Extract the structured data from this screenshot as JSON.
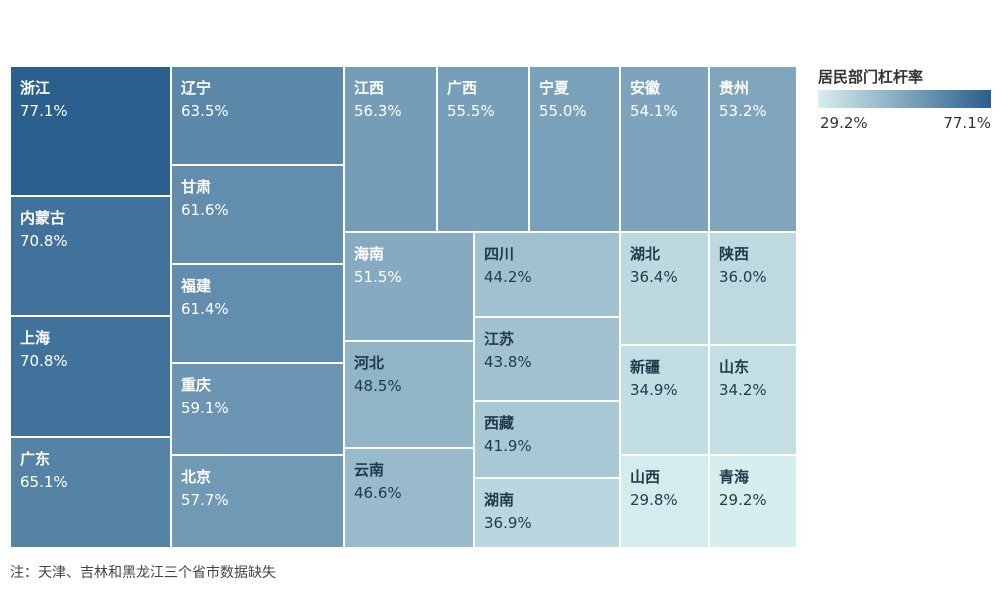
{
  "chart_data": {
    "type": "treemap",
    "title": "",
    "legend": {
      "title": "居民部门杠杆率",
      "min_label": "29.2%",
      "max_label": "77.1%",
      "min": 29.2,
      "max": 77.1,
      "color_low": "#d6eeee",
      "color_high": "#2a5f8e",
      "placement": "top-right"
    },
    "items": [
      {
        "name": "浙江",
        "label": "77.1%",
        "value": 77.1
      },
      {
        "name": "内蒙古",
        "label": "70.8%",
        "value": 70.8
      },
      {
        "name": "上海",
        "label": "70.8%",
        "value": 70.8
      },
      {
        "name": "广东",
        "label": "65.1%",
        "value": 65.1
      },
      {
        "name": "辽宁",
        "label": "63.5%",
        "value": 63.5
      },
      {
        "name": "甘肃",
        "label": "61.6%",
        "value": 61.6
      },
      {
        "name": "福建",
        "label": "61.4%",
        "value": 61.4
      },
      {
        "name": "重庆",
        "label": "59.1%",
        "value": 59.1
      },
      {
        "name": "北京",
        "label": "57.7%",
        "value": 57.7
      },
      {
        "name": "江西",
        "label": "56.3%",
        "value": 56.3
      },
      {
        "name": "广西",
        "label": "55.5%",
        "value": 55.5
      },
      {
        "name": "宁夏",
        "label": "55.0%",
        "value": 55.0
      },
      {
        "name": "安徽",
        "label": "54.1%",
        "value": 54.1
      },
      {
        "name": "贵州",
        "label": "53.2%",
        "value": 53.2
      },
      {
        "name": "海南",
        "label": "51.5%",
        "value": 51.5
      },
      {
        "name": "河北",
        "label": "48.5%",
        "value": 48.5
      },
      {
        "name": "云南",
        "label": "46.6%",
        "value": 46.6
      },
      {
        "name": "四川",
        "label": "44.2%",
        "value": 44.2
      },
      {
        "name": "江苏",
        "label": "43.8%",
        "value": 43.8
      },
      {
        "name": "西藏",
        "label": "41.9%",
        "value": 41.9
      },
      {
        "name": "湖南",
        "label": "36.9%",
        "value": 36.9
      },
      {
        "name": "湖北",
        "label": "36.4%",
        "value": 36.4
      },
      {
        "name": "陕西",
        "label": "36.0%",
        "value": 36.0
      },
      {
        "name": "新疆",
        "label": "34.9%",
        "value": 34.9
      },
      {
        "name": "山东",
        "label": "34.2%",
        "value": 34.2
      },
      {
        "name": "山西",
        "label": "29.8%",
        "value": 29.8
      },
      {
        "name": "青海",
        "label": "29.2%",
        "value": 29.2
      }
    ],
    "footnote": "注：天津、吉林和黑龙江三个省市数据缺失"
  }
}
